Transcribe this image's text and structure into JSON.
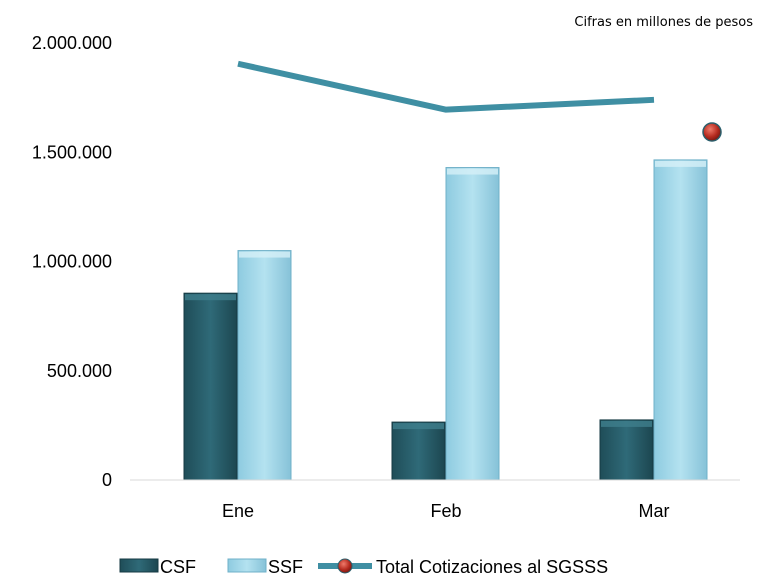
{
  "chart_data": {
    "type": "bar",
    "note": "Cifras en millones de pesos",
    "categories": [
      "Ene",
      "Feb",
      "Mar"
    ],
    "ylim": [
      0,
      2000000
    ],
    "yticks": [
      0,
      500000,
      1000000,
      1500000,
      2000000
    ],
    "ytick_labels": [
      "0",
      "500.000",
      "1.000.000",
      "1.500.000",
      "2.000.000"
    ],
    "grid": false,
    "legend_position": "bottom",
    "series": [
      {
        "name": "CSF",
        "kind": "bar",
        "color": "#2e6472",
        "values": [
          855000,
          265000,
          275000
        ]
      },
      {
        "name": "SSF",
        "kind": "bar",
        "color": "#a8d8e8",
        "values": [
          1050000,
          1430000,
          1465000
        ]
      },
      {
        "name": "Total Cotizaciones al SGSSS",
        "kind": "line",
        "color": "#3f8fa3",
        "marker_color": "#c0392b",
        "values": [
          1905000,
          1695000,
          1740000
        ]
      }
    ]
  }
}
